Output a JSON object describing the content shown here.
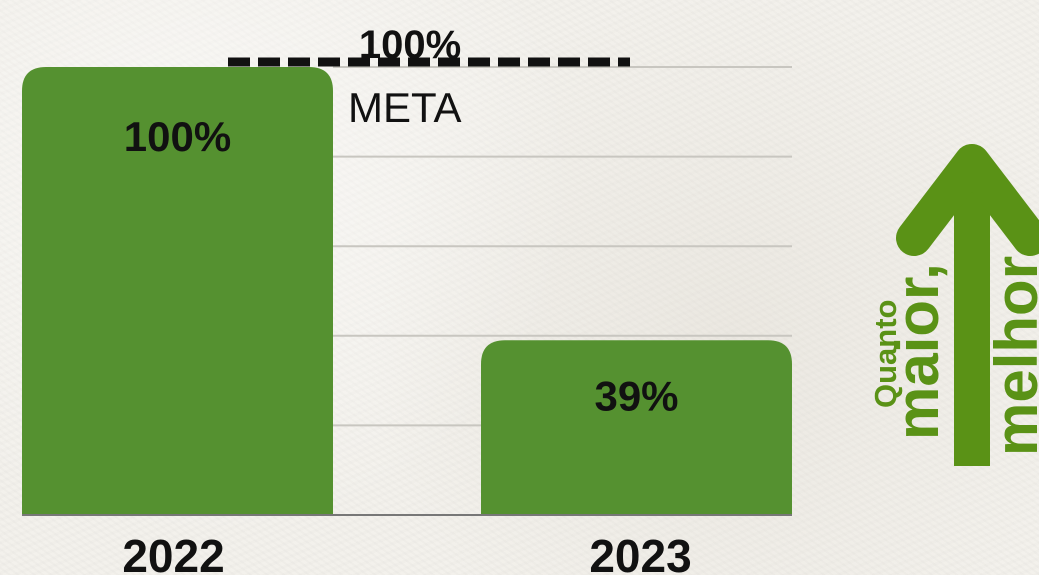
{
  "chart_data": {
    "type": "bar",
    "categories": [
      "2022",
      "2023"
    ],
    "values": [
      100,
      39
    ],
    "value_labels": [
      "100%",
      "39%"
    ],
    "ylim": [
      0,
      100
    ],
    "grid": true,
    "bar_color": "#559130",
    "target": {
      "value": 100,
      "value_label": "100%",
      "label": "META"
    }
  },
  "slogan": {
    "line1": "Quanto",
    "line2": "maior,",
    "line3": "melhor",
    "color": "#5a9216"
  }
}
